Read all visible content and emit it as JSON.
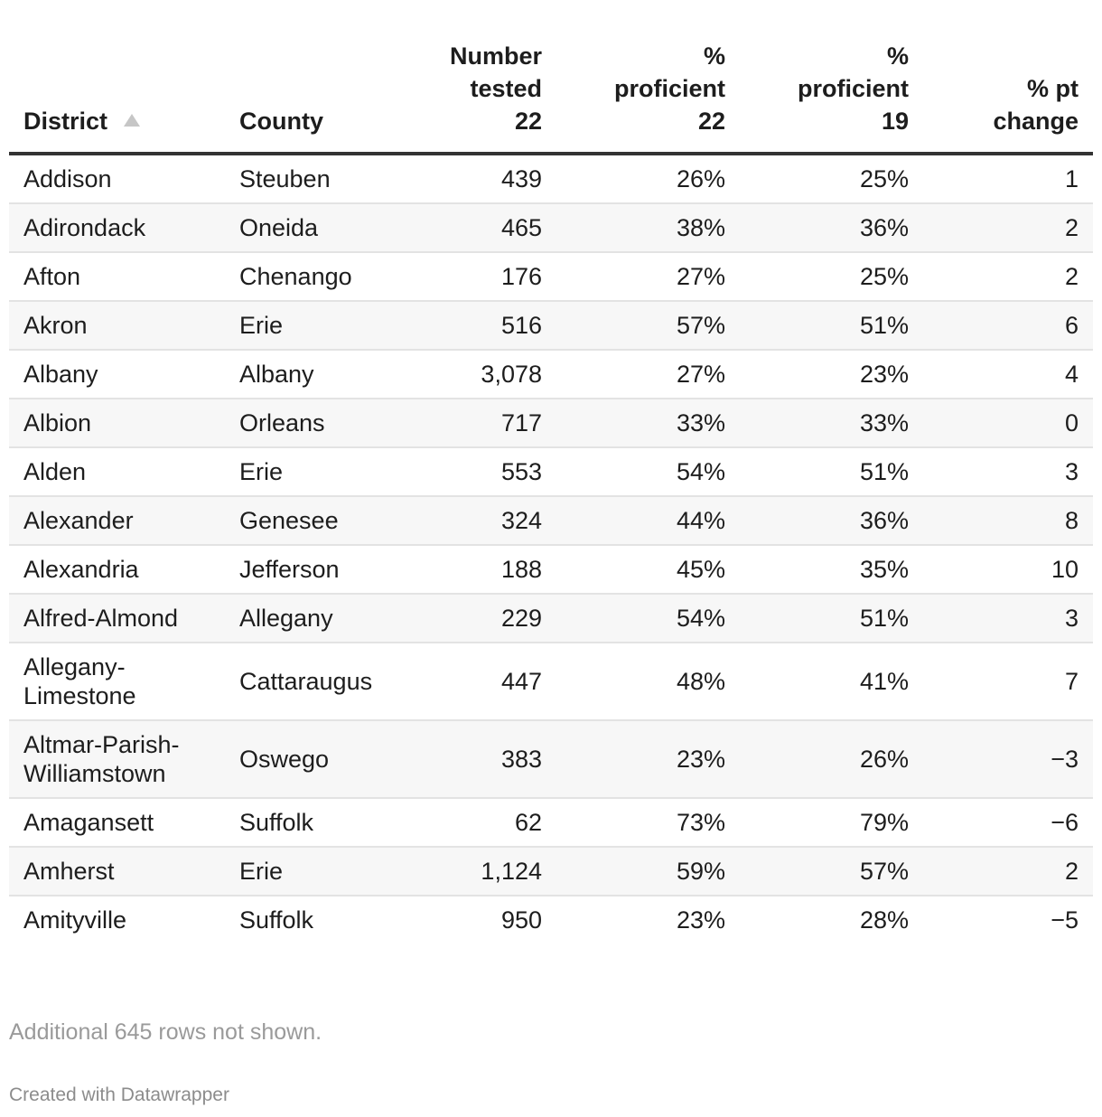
{
  "table": {
    "headers": {
      "district": "District",
      "county": "County",
      "number_tested": [
        "Number",
        "tested",
        "22"
      ],
      "pct_proficient_22": [
        "%",
        "proficient",
        "22"
      ],
      "pct_proficient_19": [
        "%",
        "proficient",
        "19"
      ],
      "pct_pt_change": [
        "% pt",
        "change"
      ]
    },
    "sort": {
      "column": "District",
      "direction": "ascending"
    },
    "rows": [
      {
        "district": "Addison",
        "county": "Steuben",
        "tested": "439",
        "p22": "26%",
        "p19": "25%",
        "change": "1"
      },
      {
        "district": "Adirondack",
        "county": "Oneida",
        "tested": "465",
        "p22": "38%",
        "p19": "36%",
        "change": "2"
      },
      {
        "district": "Afton",
        "county": "Chenango",
        "tested": "176",
        "p22": "27%",
        "p19": "25%",
        "change": "2"
      },
      {
        "district": "Akron",
        "county": "Erie",
        "tested": "516",
        "p22": "57%",
        "p19": "51%",
        "change": "6"
      },
      {
        "district": "Albany",
        "county": "Albany",
        "tested": "3,078",
        "p22": "27%",
        "p19": "23%",
        "change": "4"
      },
      {
        "district": "Albion",
        "county": "Orleans",
        "tested": "717",
        "p22": "33%",
        "p19": "33%",
        "change": "0"
      },
      {
        "district": "Alden",
        "county": "Erie",
        "tested": "553",
        "p22": "54%",
        "p19": "51%",
        "change": "3"
      },
      {
        "district": "Alexander",
        "county": "Genesee",
        "tested": "324",
        "p22": "44%",
        "p19": "36%",
        "change": "8"
      },
      {
        "district": "Alexandria",
        "county": "Jefferson",
        "tested": "188",
        "p22": "45%",
        "p19": "35%",
        "change": "10"
      },
      {
        "district": "Alfred-Almond",
        "county": "Allegany",
        "tested": "229",
        "p22": "54%",
        "p19": "51%",
        "change": "3"
      },
      {
        "district": "Allegany-Limestone",
        "county": "Cattaraugus",
        "tested": "447",
        "p22": "48%",
        "p19": "41%",
        "change": "7"
      },
      {
        "district": "Altmar-Parish-Williamstown",
        "county": "Oswego",
        "tested": "383",
        "p22": "23%",
        "p19": "26%",
        "change": "−3"
      },
      {
        "district": "Amagansett",
        "county": "Suffolk",
        "tested": "62",
        "p22": "73%",
        "p19": "79%",
        "change": "−6"
      },
      {
        "district": "Amherst",
        "county": "Erie",
        "tested": "1,124",
        "p22": "59%",
        "p19": "57%",
        "change": "2"
      },
      {
        "district": "Amityville",
        "county": "Suffolk",
        "tested": "950",
        "p22": "23%",
        "p19": "28%",
        "change": "−5"
      }
    ]
  },
  "footer": {
    "rows_note": "Additional 645 rows not shown.",
    "credit": "Created with Datawrapper"
  },
  "colors": {
    "text": "#1d1d1d",
    "header_rule": "#333333",
    "row_rule": "#e3e3e3",
    "stripe": "#f7f7f7",
    "muted": "#9a9a9a"
  },
  "icons": {
    "sort": "sort-ascending-icon"
  }
}
